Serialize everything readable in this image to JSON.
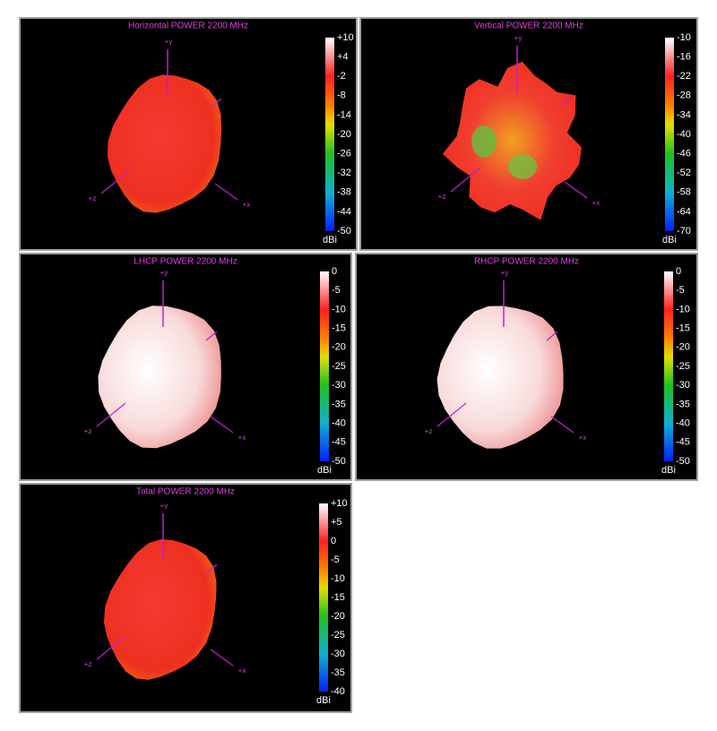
{
  "panels": [
    {
      "title": "Horizontal POWER 2200  MHz",
      "scale": [
        "+10",
        "+4",
        "-2",
        "-8",
        "-14",
        "-20",
        "-26",
        "-32",
        "-38",
        "-44",
        "-50"
      ],
      "unit": "dBi",
      "axes": {
        "y": "+y",
        "x": "+x",
        "z": "+z"
      }
    },
    {
      "title": "Vertical POWER 2200  MHz",
      "scale": [
        "-10",
        "-16",
        "-22",
        "-28",
        "-34",
        "-40",
        "-46",
        "-52",
        "-58",
        "-64",
        "-70"
      ],
      "unit": "dBi",
      "axes": {
        "y": "+y",
        "x": "+x",
        "z": "+z"
      }
    },
    {
      "title": "LHCP POWER 2200  MHz",
      "scale": [
        "0",
        "-5",
        "-10",
        "-15",
        "-20",
        "-25",
        "-30",
        "-35",
        "-40",
        "-45",
        "-50"
      ],
      "unit": "dBi",
      "axes": {
        "y": "+y",
        "x": "+x",
        "z": "+z"
      }
    },
    {
      "title": "RHCP POWER 2200  MHz",
      "scale": [
        "0",
        "-5",
        "-10",
        "-15",
        "-20",
        "-25",
        "-30",
        "-35",
        "-40",
        "-45",
        "-50"
      ],
      "unit": "dBi",
      "axes": {
        "y": "+y",
        "x": "+x",
        "z": "+z"
      }
    },
    {
      "title": "Total POWER 2200  MHz",
      "scale": [
        "+10",
        "+5",
        "0",
        "-5",
        "-10",
        "-15",
        "-20",
        "-25",
        "-30",
        "-35",
        "-40"
      ],
      "unit": "dBi",
      "axes": {
        "y": "+y",
        "x": "+x",
        "z": "+z"
      }
    }
  ]
}
